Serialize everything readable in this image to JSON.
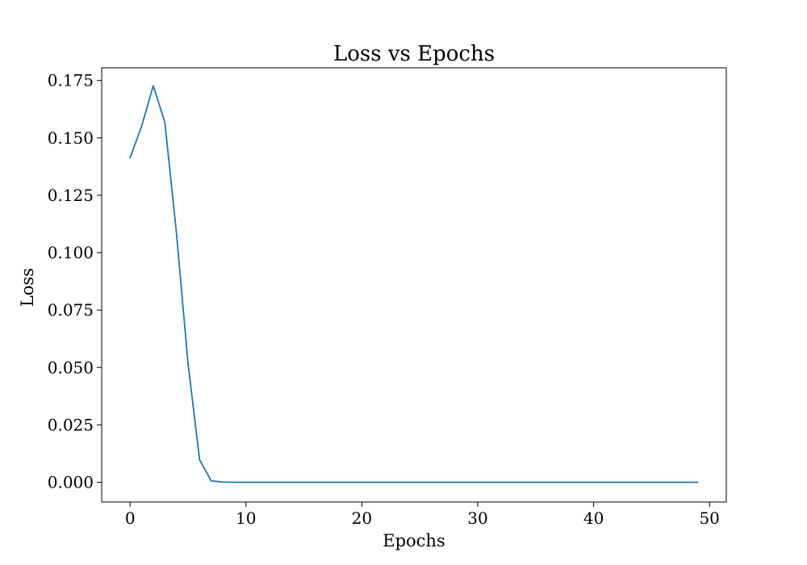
{
  "chart_data": {
    "type": "line",
    "title": "Loss vs Epochs",
    "xlabel": "Epochs",
    "ylabel": "Loss",
    "xlim": [
      -2.45,
      51.45
    ],
    "ylim": [
      -0.0086,
      0.1805
    ],
    "grid": false,
    "x_ticks": [
      0,
      10,
      20,
      30,
      40,
      50
    ],
    "x_tick_labels": [
      "0",
      "10",
      "20",
      "30",
      "40",
      "50"
    ],
    "y_ticks": [
      0.0,
      0.025,
      0.05,
      0.075,
      0.1,
      0.125,
      0.15,
      0.175
    ],
    "y_tick_labels": [
      "0.000",
      "0.025",
      "0.050",
      "0.075",
      "0.100",
      "0.125",
      "0.150",
      "0.175"
    ],
    "series": [
      {
        "color": "#1f77b4",
        "x": [
          0,
          1,
          2,
          3,
          4,
          5,
          6,
          7,
          8,
          9,
          10,
          11,
          12,
          13,
          14,
          15,
          16,
          17,
          18,
          19,
          20,
          21,
          22,
          23,
          24,
          25,
          26,
          27,
          28,
          29,
          30,
          31,
          32,
          33,
          34,
          35,
          36,
          37,
          38,
          39,
          40,
          41,
          42,
          43,
          44,
          45,
          46,
          47,
          48,
          49
        ],
        "values": [
          0.1413,
          0.1551,
          0.1727,
          0.1568,
          0.1087,
          0.0518,
          0.0098,
          0.0006,
          0.0001,
          0,
          0,
          0,
          0,
          0,
          0,
          0,
          0,
          0,
          0,
          0,
          0,
          0,
          0,
          0,
          0,
          0,
          0,
          0,
          0,
          0,
          0,
          0,
          0,
          0,
          0,
          0,
          0,
          0,
          0,
          0,
          0,
          0,
          0,
          0,
          0,
          0,
          0,
          0,
          0,
          0
        ]
      }
    ]
  }
}
